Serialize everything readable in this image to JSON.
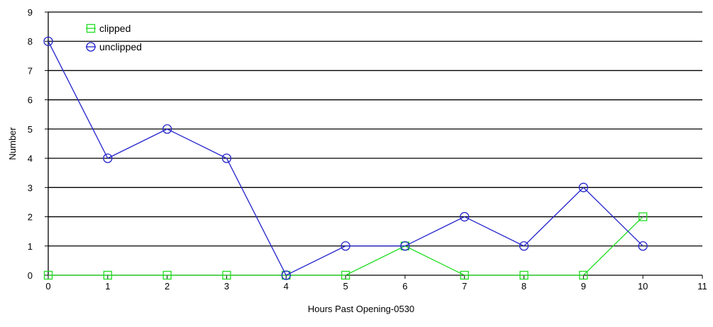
{
  "chart_data": {
    "type": "line",
    "xlabel": "Hours Past Opening-0530",
    "ylabel": "Number",
    "xlim": [
      0,
      11
    ],
    "ylim": [
      0,
      9
    ],
    "xticks": [
      "0",
      "1",
      "2",
      "3",
      "4",
      "5",
      "6",
      "7",
      "8",
      "9",
      "10",
      "11"
    ],
    "yticks": [
      "0",
      "1",
      "2",
      "3",
      "4",
      "5",
      "6",
      "7",
      "8",
      "9"
    ],
    "grid": "horizontal",
    "legend_position": "top-left",
    "series": [
      {
        "name": "clipped",
        "marker": "square",
        "color": "#22dd22",
        "x": [
          0,
          1,
          2,
          3,
          4,
          5,
          6,
          7,
          8,
          9,
          10
        ],
        "values": [
          0,
          0,
          0,
          0,
          0,
          0,
          1,
          0,
          0,
          0,
          2
        ]
      },
      {
        "name": "unclipped",
        "marker": "circle",
        "color": "#2222cc",
        "x": [
          0,
          1,
          2,
          3,
          4,
          5,
          6,
          7,
          8,
          9,
          10
        ],
        "values": [
          8,
          4,
          5,
          4,
          0,
          1,
          1,
          2,
          1,
          3,
          1
        ]
      }
    ]
  }
}
